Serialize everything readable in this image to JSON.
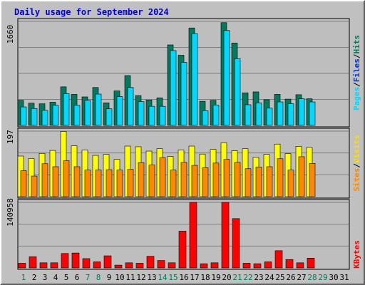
{
  "title": "Daily usage for September 2024",
  "colors": {
    "hits": "#007a5e",
    "files": "#00d8ff",
    "sites": "#ff8800",
    "visits": "#ffff00",
    "kbytes": "#ff0000",
    "weekday_label": "#000000",
    "weekend_label": "#007a5e"
  },
  "labels": {
    "hits": "Hits",
    "files": "Files",
    "pages": "Pages",
    "visits": "Visits",
    "sites": "Sites",
    "kbytes": "KBytes",
    "sep": "/"
  },
  "chart_data": [
    {
      "type": "bar",
      "panel": "top",
      "y_tick_label": "1660",
      "ylim": [
        0,
        1660
      ],
      "x": [
        1,
        2,
        3,
        4,
        5,
        6,
        7,
        8,
        9,
        10,
        11,
        12,
        13,
        14,
        15,
        16,
        17,
        18,
        19,
        20,
        21,
        22,
        23,
        24,
        25,
        26,
        27,
        28
      ],
      "series": [
        {
          "name": "Hits",
          "values": [
            400,
            355,
            345,
            370,
            615,
            495,
            455,
            605,
            360,
            550,
            795,
            475,
            405,
            440,
            1285,
            1120,
            1555,
            385,
            400,
            1640,
            1315,
            520,
            535,
            410,
            495,
            420,
            490,
            425
          ]
        },
        {
          "name": "Files",
          "values": [
            295,
            270,
            240,
            320,
            505,
            320,
            400,
            500,
            265,
            460,
            605,
            380,
            305,
            305,
            1195,
            1005,
            1465,
            235,
            325,
            1515,
            1065,
            330,
            360,
            275,
            375,
            345,
            425,
            375
          ]
        },
        {
          "name": "Pages",
          "values": [
            0,
            0,
            0,
            0,
            0,
            0,
            0,
            0,
            0,
            0,
            0,
            0,
            0,
            0,
            0,
            0,
            0,
            0,
            0,
            0,
            0,
            0,
            0,
            0,
            0,
            0,
            0,
            0
          ]
        }
      ]
    },
    {
      "type": "bar",
      "panel": "middle",
      "y_tick_label": "197",
      "ylim": [
        0,
        197
      ],
      "x": [
        1,
        2,
        3,
        4,
        5,
        6,
        7,
        8,
        9,
        10,
        11,
        12,
        13,
        14,
        15,
        16,
        17,
        18,
        19,
        20,
        21,
        22,
        23,
        24,
        25,
        26,
        27,
        28
      ],
      "series": [
        {
          "name": "Visits",
          "values": [
            122,
            115,
            130,
            139,
            196,
            153,
            140,
            124,
            127,
            112,
            152,
            150,
            137,
            144,
            121,
            140,
            152,
            128,
            142,
            162,
            138,
            144,
            118,
            127,
            158,
            129,
            151,
            148
          ]
        },
        {
          "name": "Sites",
          "values": [
            78,
            62,
            99,
            90,
            108,
            90,
            80,
            80,
            81,
            80,
            82,
            102,
            95,
            117,
            80,
            103,
            94,
            87,
            101,
            112,
            103,
            84,
            89,
            90,
            114,
            80,
            120,
            100
          ]
        }
      ]
    },
    {
      "type": "bar",
      "panel": "bottom",
      "y_tick_label": "140958",
      "ylim": [
        0,
        140958
      ],
      "x": [
        1,
        2,
        3,
        4,
        5,
        6,
        7,
        8,
        9,
        10,
        11,
        12,
        13,
        14,
        15,
        16,
        17,
        18,
        19,
        20,
        21,
        22,
        23,
        24,
        25,
        26,
        27,
        28
      ],
      "series": [
        {
          "name": "KBytes",
          "values": [
            10000,
            24000,
            11000,
            11000,
            31000,
            32000,
            20000,
            13000,
            26000,
            6000,
            11000,
            10000,
            25000,
            16000,
            11000,
            79000,
            140958,
            9000,
            11000,
            140958,
            106000,
            10000,
            9000,
            13000,
            37000,
            18000,
            11000,
            21000
          ]
        }
      ]
    }
  ],
  "x_axis": {
    "days": [
      "1",
      "2",
      "3",
      "4",
      "5",
      "6",
      "7",
      "8",
      "9",
      "10",
      "11",
      "12",
      "13",
      "14",
      "15",
      "16",
      "17",
      "18",
      "19",
      "20",
      "21",
      "22",
      "23",
      "24",
      "25",
      "26",
      "27",
      "28",
      "29",
      "30",
      "31"
    ],
    "weekend_days": [
      1,
      7,
      8,
      14,
      15,
      21,
      22,
      28,
      29
    ]
  }
}
